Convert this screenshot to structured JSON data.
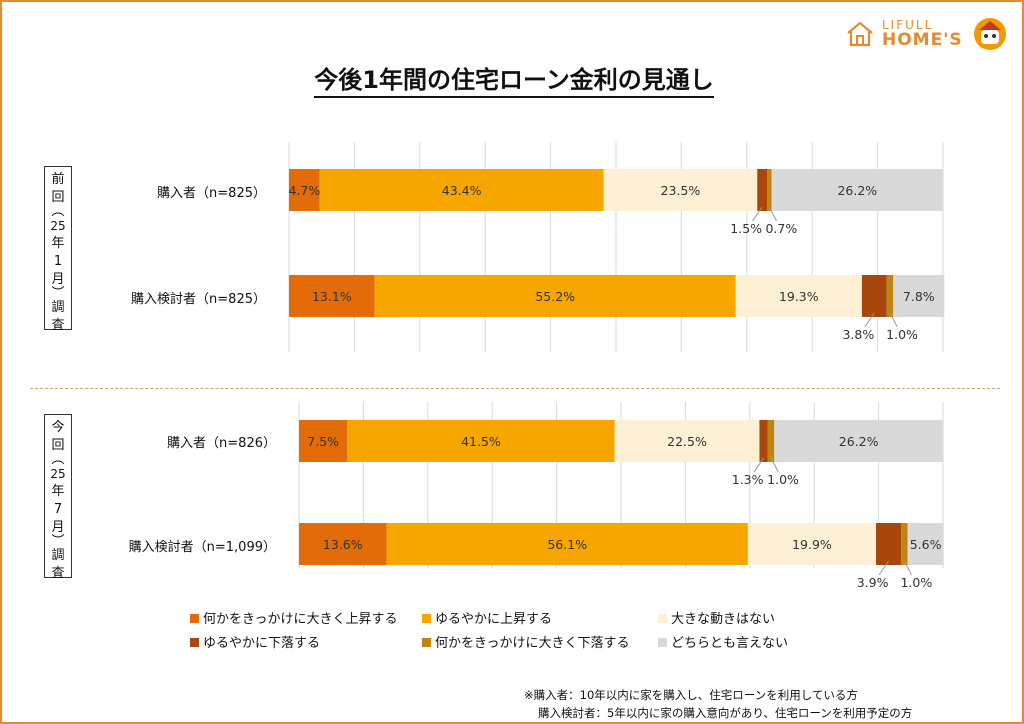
{
  "logo": {
    "top": "LIFULL",
    "main": "HOME'S"
  },
  "title": "今後1年間の住宅ローン金利の見通し",
  "periods": [
    {
      "label_lines": [
        "前",
        "回",
        "︵",
        "25",
        "年",
        "1",
        "月",
        "︶",
        "調",
        "査"
      ]
    },
    {
      "label_lines": [
        "今",
        "回",
        "︵",
        "25",
        "年",
        "7",
        "月",
        "︶",
        "調",
        "査"
      ]
    }
  ],
  "rows": [
    {
      "label": "購入者（n=825）"
    },
    {
      "label": "購入検討者（n=825）"
    },
    {
      "label": "購入者（n=826）"
    },
    {
      "label": "購入検討者（n=1,099）"
    }
  ],
  "legend": [
    {
      "label": "何かをきっかけに大きく上昇する",
      "color": "#e36c09"
    },
    {
      "label": "ゆるやかに上昇する",
      "color": "#f7a600"
    },
    {
      "label": "大きな動きはない",
      "color": "#fdf0d5"
    },
    {
      "label": "ゆるやかに下落する",
      "color": "#a8470b"
    },
    {
      "label": "何かをきっかけに大きく下落する",
      "color": "#c0850f"
    },
    {
      "label": "どちらとも言えない",
      "color": "#d9d9d9"
    }
  ],
  "notes": [
    "※購入者：10年以内に家を購入し、住宅ローンを利用している方",
    "購入検討者：5年以内に家の購入意向があり、住宅ローンを利用予定の方"
  ],
  "chart_data": {
    "type": "bar",
    "orientation": "horizontal",
    "stacked": true,
    "categories": [
      "購入者（n=825）",
      "購入検討者（n=825）",
      "購入者（n=826）",
      "購入検討者（n=1,099）"
    ],
    "series": [
      {
        "name": "何かをきっかけに大きく上昇する",
        "values": [
          4.7,
          13.1,
          7.5,
          13.6
        ]
      },
      {
        "name": "ゆるやかに上昇する",
        "values": [
          43.4,
          55.2,
          41.5,
          56.1
        ]
      },
      {
        "name": "大きな動きはない",
        "values": [
          23.5,
          19.3,
          22.5,
          19.9
        ]
      },
      {
        "name": "ゆるやかに下落する",
        "values": [
          1.5,
          3.8,
          1.3,
          3.9
        ]
      },
      {
        "name": "何かをきっかけに大きく下落する",
        "values": [
          0.7,
          1.0,
          1.0,
          1.0
        ]
      },
      {
        "name": "どちらとも言えない",
        "values": [
          26.2,
          7.8,
          26.2,
          5.6
        ]
      }
    ],
    "labels": [
      [
        "4.7%",
        "43.4%",
        "23.5%",
        "1.5%",
        "0.7%",
        "26.2%"
      ],
      [
        "13.1%",
        "55.2%",
        "19.3%",
        "3.8%",
        "1.0%",
        "7.8%"
      ],
      [
        "7.5%",
        "41.5%",
        "22.5%",
        "1.3%",
        "1.0%",
        "26.2%"
      ],
      [
        "13.6%",
        "56.1%",
        "19.9%",
        "3.9%",
        "1.0%",
        "5.6%"
      ]
    ],
    "xlim": [
      0,
      100
    ],
    "grid": true,
    "legend_position": "bottom"
  }
}
